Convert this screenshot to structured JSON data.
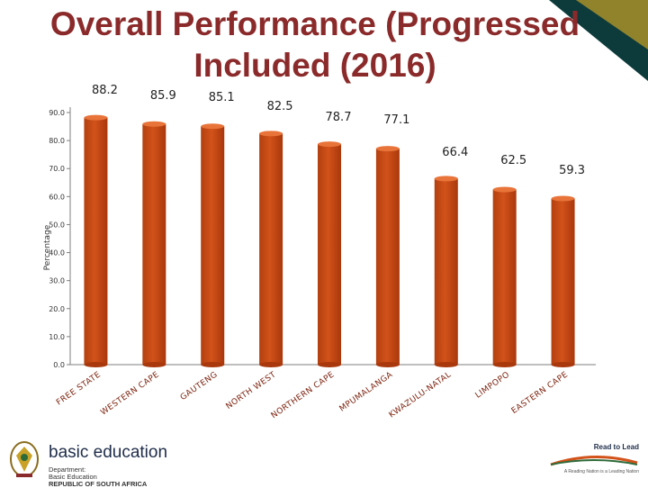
{
  "slide": {
    "title": "Overall Performance (Progressed Included (2016)"
  },
  "chart_data": {
    "type": "bar",
    "title": "Overall Performance (Progressed Included (2016)",
    "xlabel": "",
    "ylabel": "Percentage",
    "ylim": [
      0,
      90
    ],
    "yticks": [
      "0.0",
      "10.0",
      "20.0",
      "30.0",
      "40.0",
      "50.0",
      "60.0",
      "70.0",
      "80.0",
      "90.0"
    ],
    "categories": [
      "FREE STATE",
      "WESTERN CAPE",
      "GAUTENG",
      "NORTH WEST",
      "NORTHERN CAPE",
      "MPUMALANGA",
      "KWAZULU-NATAL",
      "LIMPOPO",
      "EASTERN CAPE"
    ],
    "values": [
      88.2,
      85.9,
      85.1,
      82.5,
      78.7,
      77.1,
      66.4,
      62.5,
      59.3
    ],
    "value_labels": [
      "88.2",
      "85.9",
      "85.1",
      "82.5",
      "78.7",
      "77.1",
      "66.4",
      "62.5",
      "59.3"
    ],
    "bar_color": "#d2521a",
    "grid": false
  },
  "footer": {
    "dept_name": "basic education",
    "dept_line1": "Department:",
    "dept_line2": "Basic Education",
    "dept_line3": "REPUBLIC OF SOUTH AFRICA",
    "campaign_name": "Read to Lead",
    "campaign_tagline": "A Reading Nation is a Leading Nation"
  }
}
